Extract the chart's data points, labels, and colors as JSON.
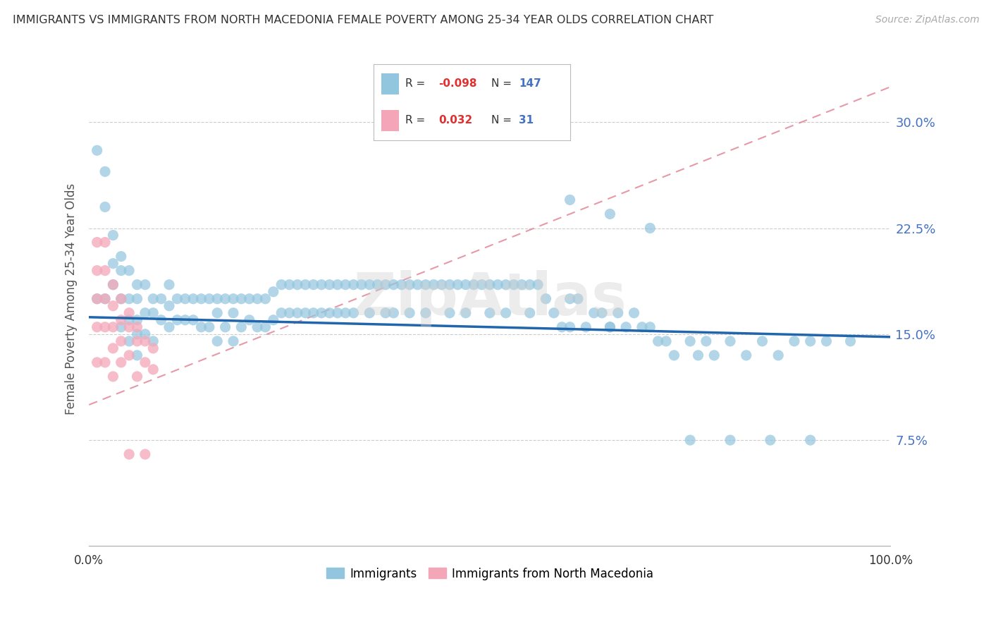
{
  "title": "IMMIGRANTS VS IMMIGRANTS FROM NORTH MACEDONIA FEMALE POVERTY AMONG 25-34 YEAR OLDS CORRELATION CHART",
  "source": "Source: ZipAtlas.com",
  "ylabel": "Female Poverty Among 25-34 Year Olds",
  "xlim": [
    0.0,
    1.0
  ],
  "ylim": [
    0.0,
    0.35
  ],
  "xtick_labels": [
    "0.0%",
    "100.0%"
  ],
  "ytick_labels": [
    "7.5%",
    "15.0%",
    "22.5%",
    "30.0%"
  ],
  "ytick_values": [
    0.075,
    0.15,
    0.225,
    0.3
  ],
  "color_blue": "#92c5de",
  "color_pink": "#f4a6b8",
  "line_blue": "#2166ac",
  "line_pink": "#e08090",
  "background": "#ffffff",
  "watermark": "ZipAtlas",
  "blue_line_x0": 0.0,
  "blue_line_x1": 1.0,
  "blue_line_y0": 0.162,
  "blue_line_y1": 0.148,
  "pink_line_x0": 0.0,
  "pink_line_x1": 1.0,
  "pink_line_y0": 0.1,
  "pink_line_y1": 0.325,
  "blue_scatter_x": [
    0.01,
    0.01,
    0.02,
    0.02,
    0.02,
    0.03,
    0.03,
    0.03,
    0.04,
    0.04,
    0.04,
    0.04,
    0.05,
    0.05,
    0.05,
    0.05,
    0.06,
    0.06,
    0.06,
    0.06,
    0.06,
    0.07,
    0.07,
    0.07,
    0.08,
    0.08,
    0.08,
    0.09,
    0.09,
    0.1,
    0.1,
    0.1,
    0.11,
    0.11,
    0.12,
    0.12,
    0.13,
    0.13,
    0.14,
    0.14,
    0.15,
    0.15,
    0.16,
    0.16,
    0.16,
    0.17,
    0.17,
    0.18,
    0.18,
    0.18,
    0.19,
    0.19,
    0.2,
    0.2,
    0.21,
    0.21,
    0.22,
    0.22,
    0.23,
    0.23,
    0.24,
    0.24,
    0.25,
    0.25,
    0.26,
    0.26,
    0.27,
    0.27,
    0.28,
    0.28,
    0.29,
    0.29,
    0.3,
    0.3,
    0.31,
    0.31,
    0.32,
    0.32,
    0.33,
    0.33,
    0.34,
    0.35,
    0.35,
    0.36,
    0.37,
    0.37,
    0.38,
    0.38,
    0.39,
    0.4,
    0.4,
    0.41,
    0.42,
    0.42,
    0.43,
    0.44,
    0.45,
    0.45,
    0.46,
    0.47,
    0.47,
    0.48,
    0.49,
    0.5,
    0.5,
    0.51,
    0.52,
    0.52,
    0.53,
    0.54,
    0.55,
    0.55,
    0.56,
    0.57,
    0.58,
    0.59,
    0.6,
    0.6,
    0.61,
    0.62,
    0.63,
    0.64,
    0.65,
    0.65,
    0.66,
    0.67,
    0.68,
    0.69,
    0.7,
    0.71,
    0.72,
    0.73,
    0.75,
    0.76,
    0.77,
    0.78,
    0.8,
    0.82,
    0.84,
    0.86,
    0.88,
    0.9,
    0.92,
    0.95,
    0.6,
    0.65,
    0.7,
    0.75,
    0.8,
    0.85,
    0.9
  ],
  "blue_scatter_y": [
    0.28,
    0.175,
    0.265,
    0.24,
    0.175,
    0.22,
    0.2,
    0.185,
    0.205,
    0.195,
    0.175,
    0.155,
    0.195,
    0.175,
    0.16,
    0.145,
    0.185,
    0.175,
    0.16,
    0.15,
    0.135,
    0.185,
    0.165,
    0.15,
    0.175,
    0.165,
    0.145,
    0.175,
    0.16,
    0.185,
    0.17,
    0.155,
    0.175,
    0.16,
    0.175,
    0.16,
    0.175,
    0.16,
    0.175,
    0.155,
    0.175,
    0.155,
    0.175,
    0.165,
    0.145,
    0.175,
    0.155,
    0.175,
    0.165,
    0.145,
    0.175,
    0.155,
    0.175,
    0.16,
    0.175,
    0.155,
    0.175,
    0.155,
    0.18,
    0.16,
    0.185,
    0.165,
    0.185,
    0.165,
    0.185,
    0.165,
    0.185,
    0.165,
    0.185,
    0.165,
    0.185,
    0.165,
    0.185,
    0.165,
    0.185,
    0.165,
    0.185,
    0.165,
    0.185,
    0.165,
    0.185,
    0.185,
    0.165,
    0.185,
    0.185,
    0.165,
    0.185,
    0.165,
    0.185,
    0.185,
    0.165,
    0.185,
    0.185,
    0.165,
    0.185,
    0.185,
    0.185,
    0.165,
    0.185,
    0.185,
    0.165,
    0.185,
    0.185,
    0.185,
    0.165,
    0.185,
    0.185,
    0.165,
    0.185,
    0.185,
    0.165,
    0.185,
    0.185,
    0.175,
    0.165,
    0.155,
    0.175,
    0.155,
    0.175,
    0.155,
    0.165,
    0.165,
    0.155,
    0.155,
    0.165,
    0.155,
    0.165,
    0.155,
    0.155,
    0.145,
    0.145,
    0.135,
    0.145,
    0.135,
    0.145,
    0.135,
    0.145,
    0.135,
    0.145,
    0.135,
    0.145,
    0.145,
    0.145,
    0.145,
    0.245,
    0.235,
    0.225,
    0.075,
    0.075,
    0.075,
    0.075
  ],
  "pink_scatter_x": [
    0.01,
    0.01,
    0.01,
    0.01,
    0.01,
    0.02,
    0.02,
    0.02,
    0.02,
    0.02,
    0.03,
    0.03,
    0.03,
    0.03,
    0.03,
    0.04,
    0.04,
    0.04,
    0.04,
    0.05,
    0.05,
    0.05,
    0.05,
    0.06,
    0.06,
    0.06,
    0.07,
    0.07,
    0.07,
    0.08,
    0.08
  ],
  "pink_scatter_y": [
    0.215,
    0.195,
    0.175,
    0.155,
    0.13,
    0.215,
    0.195,
    0.175,
    0.155,
    0.13,
    0.185,
    0.17,
    0.155,
    0.14,
    0.12,
    0.175,
    0.16,
    0.145,
    0.13,
    0.165,
    0.155,
    0.135,
    0.065,
    0.155,
    0.145,
    0.12,
    0.145,
    0.13,
    0.065,
    0.14,
    0.125
  ]
}
